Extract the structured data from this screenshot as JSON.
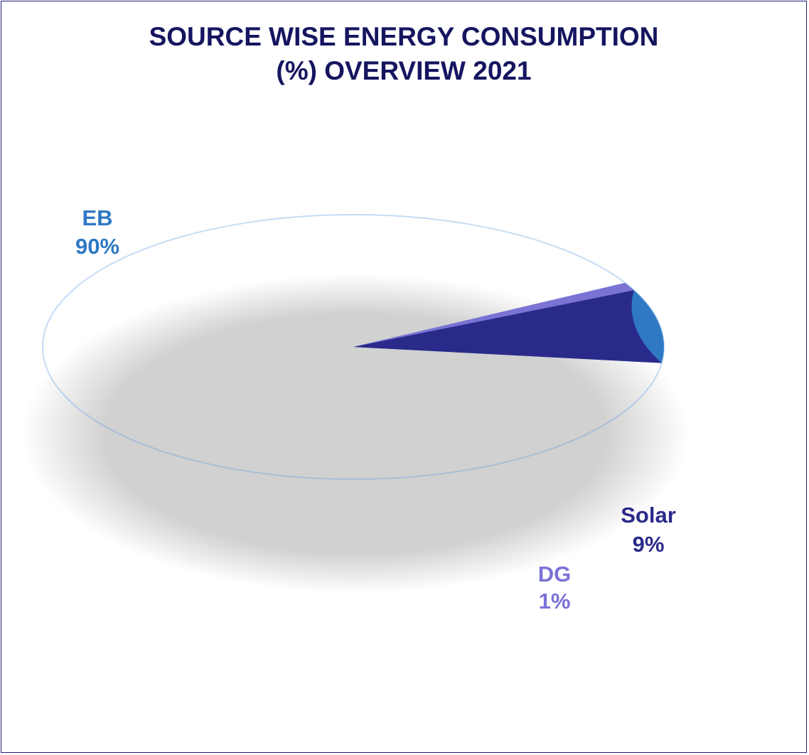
{
  "chart_data": {
    "type": "pie",
    "title_lines": [
      "SOURCE WISE ENERGY CONSUMPTION",
      "(%) OVERVIEW 2021"
    ],
    "slices": [
      {
        "name": "EB",
        "label": "90%",
        "value": 90,
        "color": "#2f78c4"
      },
      {
        "name": "DG",
        "label": "1%",
        "value": 1,
        "color": "#7b72d6"
      },
      {
        "name": "Solar",
        "label": "9%",
        "value": 9,
        "color": "#2a2a8a"
      }
    ],
    "legend": "none",
    "style": "3d"
  }
}
